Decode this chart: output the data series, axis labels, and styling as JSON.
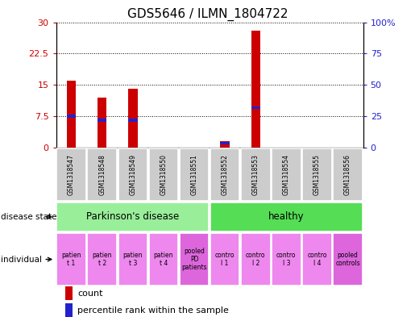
{
  "title": "GDS5646 / ILMN_1804722",
  "samples": [
    "GSM1318547",
    "GSM1318548",
    "GSM1318549",
    "GSM1318550",
    "GSM1318551",
    "GSM1318552",
    "GSM1318553",
    "GSM1318554",
    "GSM1318555",
    "GSM1318556"
  ],
  "count_values": [
    16.0,
    12.0,
    14.0,
    0.0,
    0.0,
    1.5,
    28.0,
    0.0,
    0.0,
    0.0
  ],
  "percentile_values_scaled": [
    7.5,
    6.5,
    6.5,
    0.0,
    0.0,
    1.0,
    9.5,
    0.0,
    0.0,
    0.0
  ],
  "ylim_left": [
    0,
    30
  ],
  "ylim_right": [
    0,
    100
  ],
  "yticks_left": [
    0,
    7.5,
    15,
    22.5,
    30
  ],
  "yticks_right": [
    0,
    25,
    50,
    75,
    100
  ],
  "ytick_labels_left": [
    "0",
    "7.5",
    "15",
    "22.5",
    "30"
  ],
  "ytick_labels_right": [
    "0",
    "25",
    "50",
    "75",
    "100%"
  ],
  "bar_color_count": "#cc0000",
  "bar_color_percentile": "#2222cc",
  "sample_box_color": "#cccccc",
  "pd_disease_color": "#99ee99",
  "healthy_color": "#55dd55",
  "individual_color_normal": "#ee88ee",
  "individual_color_pooled": "#dd66dd",
  "disease_state_label": "disease state",
  "individual_label": "individual",
  "legend_count_label": "count",
  "legend_percentile_label": "percentile rank within the sample",
  "individual_labels": [
    "patien\nt 1",
    "patien\nt 2",
    "patien\nt 3",
    "patien\nt 4",
    "pooled\nPD\npatients",
    "contro\nl 1",
    "contro\nl 2",
    "contro\nl 3",
    "contro\nl 4",
    "pooled\ncontrols"
  ],
  "individual_is_pooled": [
    false,
    false,
    false,
    false,
    true,
    false,
    false,
    false,
    false,
    true
  ],
  "bar_width": 0.5,
  "percentile_bar_height": 0.7
}
